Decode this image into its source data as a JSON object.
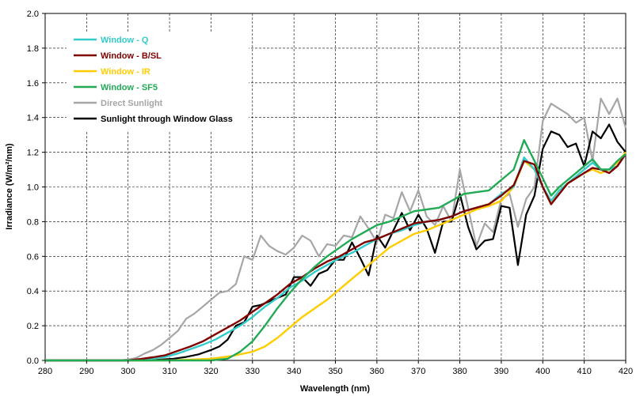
{
  "chart_data": {
    "type": "line",
    "title": "",
    "xlabel": "Wavelength (nm)",
    "ylabel": "Irradiance (W/m²/nm)",
    "xlim": [
      280,
      420
    ],
    "ylim": [
      0,
      2.0
    ],
    "x_ticks": [
      "280",
      "290",
      "300",
      "310",
      "320",
      "330",
      "340",
      "350",
      "360",
      "370",
      "380",
      "390",
      "400",
      "410",
      "420"
    ],
    "y_ticks": [
      "0.0",
      "0.2",
      "0.4",
      "0.6",
      "0.8",
      "1.0",
      "1.2",
      "1.4",
      "1.6",
      "1.8",
      "2.0"
    ],
    "grid": true,
    "legend_position": "top-left",
    "series": [
      {
        "name": "Window - Q",
        "color": "#33cccc",
        "points": [
          [
            280,
            0
          ],
          [
            300,
            0
          ],
          [
            303,
            0.005
          ],
          [
            306,
            0.012
          ],
          [
            309,
            0.02
          ],
          [
            312,
            0.04
          ],
          [
            315,
            0.065
          ],
          [
            318,
            0.09
          ],
          [
            321,
            0.12
          ],
          [
            324,
            0.16
          ],
          [
            327,
            0.2
          ],
          [
            330,
            0.25
          ],
          [
            333,
            0.31
          ],
          [
            336,
            0.36
          ],
          [
            339,
            0.42
          ],
          [
            342,
            0.46
          ],
          [
            345,
            0.51
          ],
          [
            348,
            0.55
          ],
          [
            351,
            0.59
          ],
          [
            354,
            0.62
          ],
          [
            357,
            0.66
          ],
          [
            360,
            0.7
          ],
          [
            363,
            0.73
          ],
          [
            366,
            0.75
          ],
          [
            369,
            0.78
          ],
          [
            372,
            0.8
          ],
          [
            375,
            0.81
          ],
          [
            378,
            0.83
          ],
          [
            381,
            0.86
          ],
          [
            384,
            0.88
          ],
          [
            387,
            0.9
          ],
          [
            390,
            0.96
          ],
          [
            393,
            1.0
          ],
          [
            395.5,
            1.17
          ],
          [
            398,
            1.1
          ],
          [
            400,
            1.0
          ],
          [
            402,
            0.92
          ],
          [
            404,
            0.98
          ],
          [
            406,
            1.02
          ],
          [
            408,
            1.06
          ],
          [
            410,
            1.1
          ],
          [
            412,
            1.14
          ],
          [
            414,
            1.1
          ],
          [
            416,
            1.1
          ],
          [
            418,
            1.12
          ],
          [
            420,
            1.19
          ]
        ]
      },
      {
        "name": "Window - B/SL",
        "color": "#800000",
        "points": [
          [
            280,
            0
          ],
          [
            300,
            0
          ],
          [
            303,
            0.008
          ],
          [
            306,
            0.018
          ],
          [
            309,
            0.03
          ],
          [
            312,
            0.055
          ],
          [
            315,
            0.08
          ],
          [
            318,
            0.11
          ],
          [
            321,
            0.15
          ],
          [
            324,
            0.19
          ],
          [
            327,
            0.23
          ],
          [
            330,
            0.28
          ],
          [
            333,
            0.33
          ],
          [
            336,
            0.38
          ],
          [
            339,
            0.44
          ],
          [
            342,
            0.48
          ],
          [
            345,
            0.53
          ],
          [
            348,
            0.57
          ],
          [
            351,
            0.6
          ],
          [
            354,
            0.64
          ],
          [
            357,
            0.68
          ],
          [
            360,
            0.7
          ],
          [
            363,
            0.73
          ],
          [
            366,
            0.76
          ],
          [
            369,
            0.79
          ],
          [
            372,
            0.8
          ],
          [
            375,
            0.81
          ],
          [
            378,
            0.83
          ],
          [
            381,
            0.86
          ],
          [
            384,
            0.88
          ],
          [
            387,
            0.9
          ],
          [
            390,
            0.95
          ],
          [
            393,
            1.01
          ],
          [
            395.5,
            1.15
          ],
          [
            398,
            1.13
          ],
          [
            400,
            1.0
          ],
          [
            402,
            0.9
          ],
          [
            404,
            0.96
          ],
          [
            406,
            1.02
          ],
          [
            408,
            1.05
          ],
          [
            410,
            1.08
          ],
          [
            412,
            1.11
          ],
          [
            414,
            1.1
          ],
          [
            416,
            1.08
          ],
          [
            418,
            1.12
          ],
          [
            420,
            1.19
          ]
        ]
      },
      {
        "name": "Window - IR",
        "color": "#ffcc00",
        "points": [
          [
            280,
            0
          ],
          [
            310,
            0
          ],
          [
            315,
            0.005
          ],
          [
            320,
            0.01
          ],
          [
            325,
            0.025
          ],
          [
            330,
            0.05
          ],
          [
            333,
            0.08
          ],
          [
            336,
            0.13
          ],
          [
            339,
            0.19
          ],
          [
            342,
            0.25
          ],
          [
            345,
            0.3
          ],
          [
            348,
            0.35
          ],
          [
            351,
            0.41
          ],
          [
            354,
            0.47
          ],
          [
            357,
            0.53
          ],
          [
            360,
            0.59
          ],
          [
            363,
            0.65
          ],
          [
            366,
            0.69
          ],
          [
            369,
            0.73
          ],
          [
            372,
            0.75
          ],
          [
            375,
            0.78
          ],
          [
            378,
            0.81
          ],
          [
            381,
            0.84
          ],
          [
            384,
            0.87
          ],
          [
            387,
            0.89
          ],
          [
            390,
            0.92
          ],
          [
            393,
            1.0
          ],
          [
            395.5,
            1.15
          ],
          [
            398,
            1.1
          ],
          [
            400,
            1.0
          ],
          [
            402,
            0.9
          ],
          [
            404,
            0.98
          ],
          [
            406,
            1.02
          ],
          [
            408,
            1.05
          ],
          [
            410,
            1.08
          ],
          [
            412,
            1.1
          ],
          [
            414,
            1.08
          ],
          [
            416,
            1.1
          ],
          [
            418,
            1.14
          ],
          [
            420,
            1.2
          ]
        ]
      },
      {
        "name": "Window - SF5",
        "color": "#22aa55",
        "points": [
          [
            280,
            0
          ],
          [
            320,
            0
          ],
          [
            324,
            0.01
          ],
          [
            327,
            0.05
          ],
          [
            330,
            0.11
          ],
          [
            333,
            0.2
          ],
          [
            336,
            0.3
          ],
          [
            339,
            0.39
          ],
          [
            342,
            0.47
          ],
          [
            345,
            0.54
          ],
          [
            348,
            0.6
          ],
          [
            351,
            0.65
          ],
          [
            354,
            0.7
          ],
          [
            357,
            0.74
          ],
          [
            360,
            0.78
          ],
          [
            363,
            0.8
          ],
          [
            366,
            0.83
          ],
          [
            369,
            0.86
          ],
          [
            372,
            0.87
          ],
          [
            375,
            0.88
          ],
          [
            378,
            0.92
          ],
          [
            381,
            0.96
          ],
          [
            384,
            0.97
          ],
          [
            387,
            0.98
          ],
          [
            390,
            1.04
          ],
          [
            393,
            1.1
          ],
          [
            395.5,
            1.27
          ],
          [
            398,
            1.15
          ],
          [
            400,
            1.05
          ],
          [
            402,
            0.95
          ],
          [
            404,
            1.0
          ],
          [
            406,
            1.04
          ],
          [
            408,
            1.08
          ],
          [
            410,
            1.12
          ],
          [
            412,
            1.16
          ],
          [
            414,
            1.1
          ],
          [
            416,
            1.1
          ],
          [
            418,
            1.15
          ],
          [
            420,
            1.19
          ]
        ]
      },
      {
        "name": "Direct Sunlight",
        "color": "#a6a6a6",
        "points": [
          [
            280,
            0
          ],
          [
            298,
            0
          ],
          [
            300,
            0.005
          ],
          [
            302,
            0.015
          ],
          [
            304,
            0.04
          ],
          [
            306,
            0.06
          ],
          [
            308,
            0.09
          ],
          [
            310,
            0.13
          ],
          [
            312,
            0.17
          ],
          [
            314,
            0.24
          ],
          [
            316,
            0.27
          ],
          [
            318,
            0.31
          ],
          [
            320,
            0.35
          ],
          [
            322,
            0.39
          ],
          [
            324,
            0.4
          ],
          [
            326,
            0.44
          ],
          [
            328,
            0.6
          ],
          [
            330,
            0.58
          ],
          [
            332,
            0.72
          ],
          [
            334,
            0.66
          ],
          [
            336,
            0.63
          ],
          [
            338,
            0.61
          ],
          [
            340,
            0.65
          ],
          [
            342,
            0.72
          ],
          [
            344,
            0.69
          ],
          [
            346,
            0.6
          ],
          [
            348,
            0.67
          ],
          [
            350,
            0.66
          ],
          [
            352,
            0.72
          ],
          [
            354,
            0.71
          ],
          [
            356,
            0.83
          ],
          [
            358,
            0.76
          ],
          [
            360,
            0.68
          ],
          [
            362,
            0.84
          ],
          [
            364,
            0.82
          ],
          [
            366,
            0.97
          ],
          [
            368,
            0.86
          ],
          [
            370,
            0.98
          ],
          [
            372,
            0.83
          ],
          [
            374,
            0.78
          ],
          [
            376,
            0.89
          ],
          [
            378,
            0.8
          ],
          [
            380,
            1.1
          ],
          [
            382,
            0.88
          ],
          [
            384,
            0.66
          ],
          [
            386,
            0.79
          ],
          [
            388,
            0.74
          ],
          [
            390,
            0.93
          ],
          [
            392,
            0.96
          ],
          [
            394,
            0.77
          ],
          [
            396,
            0.93
          ],
          [
            398,
            1.0
          ],
          [
            400,
            1.38
          ],
          [
            402,
            1.48
          ],
          [
            404,
            1.45
          ],
          [
            406,
            1.42
          ],
          [
            408,
            1.37
          ],
          [
            410,
            1.4
          ],
          [
            412,
            1.15
          ],
          [
            414,
            1.51
          ],
          [
            416,
            1.42
          ],
          [
            418,
            1.51
          ],
          [
            420,
            1.34
          ]
        ]
      },
      {
        "name": "Sunlight through Window Glass",
        "color": "#000000",
        "points": [
          [
            280,
            0
          ],
          [
            305,
            0
          ],
          [
            308,
            0.005
          ],
          [
            311,
            0.01
          ],
          [
            314,
            0.02
          ],
          [
            317,
            0.035
          ],
          [
            320,
            0.06
          ],
          [
            322,
            0.08
          ],
          [
            324,
            0.12
          ],
          [
            326,
            0.2
          ],
          [
            328,
            0.22
          ],
          [
            330,
            0.31
          ],
          [
            332,
            0.32
          ],
          [
            334,
            0.34
          ],
          [
            336,
            0.36
          ],
          [
            338,
            0.38
          ],
          [
            340,
            0.48
          ],
          [
            342,
            0.48
          ],
          [
            344,
            0.43
          ],
          [
            346,
            0.5
          ],
          [
            348,
            0.52
          ],
          [
            350,
            0.58
          ],
          [
            352,
            0.58
          ],
          [
            354,
            0.68
          ],
          [
            356,
            0.59
          ],
          [
            358,
            0.49
          ],
          [
            360,
            0.72
          ],
          [
            362,
            0.65
          ],
          [
            364,
            0.75
          ],
          [
            366,
            0.85
          ],
          [
            368,
            0.75
          ],
          [
            370,
            0.84
          ],
          [
            372,
            0.76
          ],
          [
            374,
            0.62
          ],
          [
            376,
            0.8
          ],
          [
            378,
            0.8
          ],
          [
            380,
            0.96
          ],
          [
            382,
            0.77
          ],
          [
            384,
            0.64
          ],
          [
            386,
            0.69
          ],
          [
            388,
            0.7
          ],
          [
            390,
            0.89
          ],
          [
            392,
            0.88
          ],
          [
            394,
            0.55
          ],
          [
            396,
            0.84
          ],
          [
            398,
            0.95
          ],
          [
            400,
            1.22
          ],
          [
            402,
            1.32
          ],
          [
            404,
            1.3
          ],
          [
            406,
            1.23
          ],
          [
            408,
            1.25
          ],
          [
            410,
            1.12
          ],
          [
            412,
            1.32
          ],
          [
            414,
            1.28
          ],
          [
            416,
            1.36
          ],
          [
            418,
            1.26
          ],
          [
            420,
            1.2
          ]
        ]
      }
    ]
  }
}
